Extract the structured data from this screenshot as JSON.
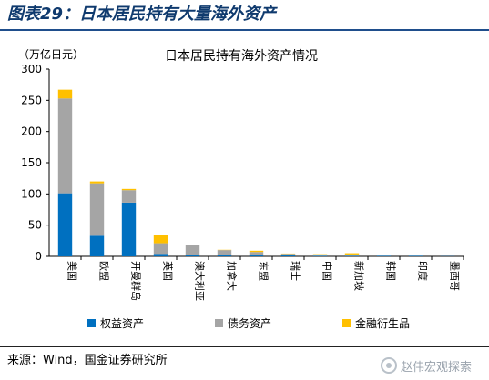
{
  "header": {
    "figure_title": "图表29：日本居民持有大量海外资产"
  },
  "footer": {
    "source": "来源：Wind，国金证券研究所",
    "watermark": "赵伟宏观探索"
  },
  "colors": {
    "equity": "#0070C0",
    "debt": "#A5A5A5",
    "derivatives": "#FFC000",
    "title_text": "#0f3a6e"
  },
  "icons": {
    "watermark": "wechat-channel-icon"
  },
  "chart_data": {
    "type": "bar",
    "stacked": true,
    "title": "日本居民持有海外资产情况",
    "unit_label": "（万亿日元）",
    "xlabel": "",
    "ylabel": "",
    "ylim": [
      0,
      300
    ],
    "yticks": [
      0,
      50,
      100,
      150,
      200,
      250,
      300
    ],
    "grid": false,
    "legend_position": "bottom",
    "categories": [
      "美国",
      "欧盟",
      "开曼群岛",
      "英国",
      "澳大利亚",
      "加拿大",
      "东盟",
      "瑞士",
      "中国",
      "新加坡",
      "韩国",
      "印度",
      "墨西哥"
    ],
    "series": [
      {
        "name": "权益资产",
        "values": [
          101,
          33,
          86,
          4,
          2,
          2,
          2,
          2,
          1,
          1,
          1,
          1,
          0.5
        ]
      },
      {
        "name": "债务资产",
        "values": [
          152,
          84,
          20,
          17,
          16,
          8,
          5,
          2,
          2,
          2,
          1,
          1,
          1
        ]
      },
      {
        "name": "金融衍生品",
        "values": [
          14,
          3,
          2,
          13,
          0.5,
          0.5,
          2,
          0.5,
          0.5,
          2,
          0.2,
          0.2,
          0.2
        ]
      }
    ]
  }
}
